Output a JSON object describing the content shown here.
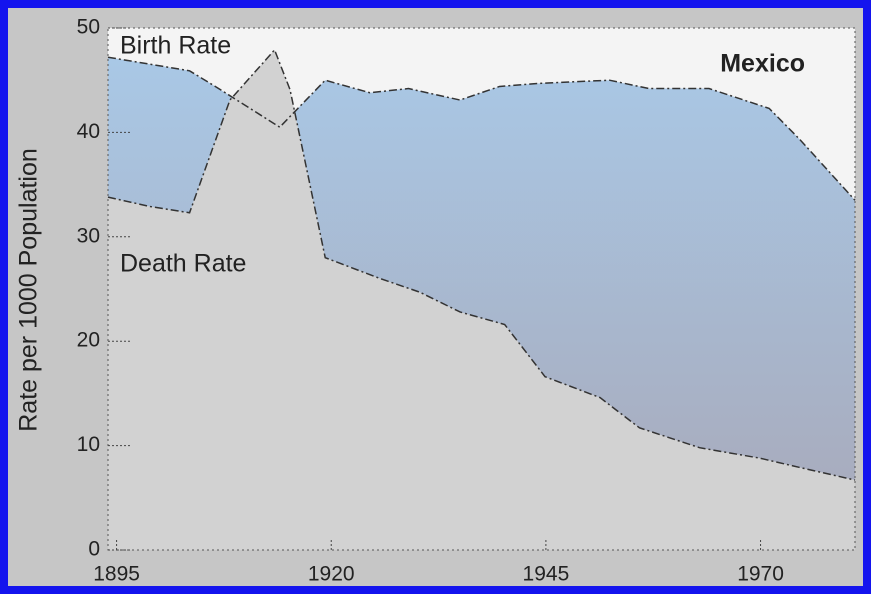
{
  "chart_data": {
    "type": "area",
    "title": "Mexico",
    "ylabel": "Rate per 1000 Population",
    "series": [
      {
        "name": "Birth Rate",
        "color": "#333333",
        "x": [
          1894,
          1903.5,
          1906.5,
          1914,
          1919.3,
          1924.5,
          1929,
          1935,
          1939.6,
          1944.3,
          1952.4,
          1957,
          1964,
          1971,
          1974.6,
          1981
        ],
        "values": [
          47.2,
          45.9,
          44.4,
          40.5,
          45,
          43.8,
          44.2,
          43.1,
          44.4,
          44.7,
          45,
          44.2,
          44.2,
          42.3,
          39.3,
          33.5
        ]
      },
      {
        "name": "Death Rate",
        "color": "#333333",
        "x": [
          1894,
          1898.9,
          1903.5,
          1908.2,
          1913.4,
          1915.2,
          1919.3,
          1925.7,
          1930.3,
          1935,
          1940.2,
          1944.9,
          1951.3,
          1955.9,
          1962.9,
          1969.9,
          1974.6,
          1981
        ],
        "values": [
          33.8,
          32.9,
          32.3,
          43.1,
          47.9,
          44.1,
          28,
          26,
          24.7,
          22.8,
          21.6,
          16.6,
          14.6,
          11.7,
          9.8,
          8.8,
          7.9,
          6.7
        ]
      }
    ],
    "xlim": [
      1894,
      1981
    ],
    "xticks": [
      1895,
      1920,
      1945,
      1970
    ],
    "ylim": [
      0,
      50
    ],
    "yticks": [
      0,
      10,
      20,
      30,
      40,
      50
    ]
  }
}
